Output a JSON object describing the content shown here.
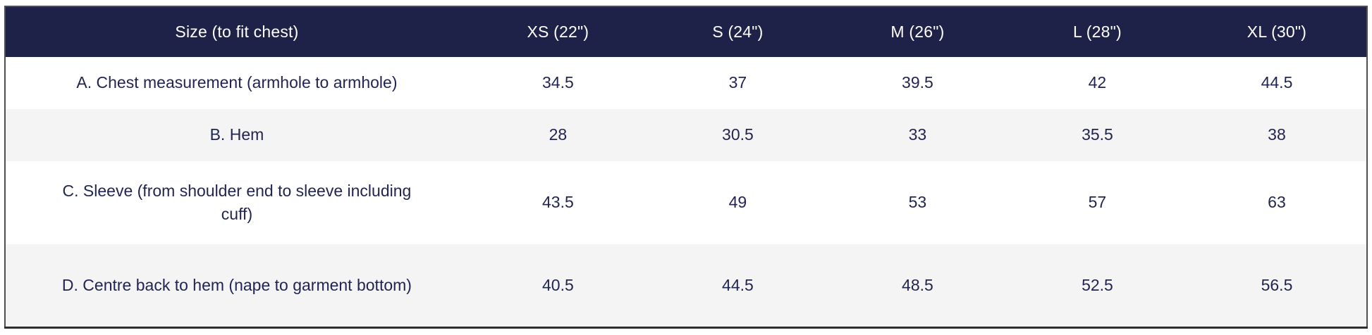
{
  "table": {
    "columns": [
      "Size (to fit chest)",
      "XS (22\")",
      "S (24\")",
      "M (26\")",
      "L (28\")",
      "XL (30\")"
    ],
    "rows": [
      {
        "label": "A. Chest measurement (armhole to armhole)",
        "values": [
          "34.5",
          "37",
          "39.5",
          "42",
          "44.5"
        ]
      },
      {
        "label": "B. Hem",
        "values": [
          "28",
          "30.5",
          "33",
          "35.5",
          "38"
        ]
      },
      {
        "label": "C. Sleeve (from shoulder end to sleeve including cuff)",
        "values": [
          "43.5",
          "49",
          "53",
          "57",
          "63"
        ]
      },
      {
        "label": "D. Centre back to hem (nape to garment bottom)",
        "values": [
          "40.5",
          "44.5",
          "48.5",
          "52.5",
          "56.5"
        ]
      }
    ]
  },
  "colors": {
    "header_bg": "#1e2248",
    "header_text": "#ffffff",
    "body_text": "#1f2451",
    "alt_row_bg": "#f4f4f4",
    "row_bg": "#ffffff",
    "border": "#505050"
  },
  "chart_data": {
    "type": "table",
    "title": "Size (to fit chest)",
    "columns": [
      "Size (to fit chest)",
      "XS (22\")",
      "S (24\")",
      "M (26\")",
      "L (28\")",
      "XL (30\")"
    ],
    "row_labels": [
      "A. Chest measurement (armhole to armhole)",
      "B. Hem",
      "C. Sleeve (from shoulder end to sleeve including cuff)",
      "D. Centre back to hem (nape to garment bottom)"
    ],
    "series": [
      {
        "name": "XS (22\")",
        "values": [
          34.5,
          28,
          43.5,
          40.5
        ]
      },
      {
        "name": "S (24\")",
        "values": [
          37,
          30.5,
          49,
          44.5
        ]
      },
      {
        "name": "M (26\")",
        "values": [
          39.5,
          33,
          53,
          48.5
        ]
      },
      {
        "name": "L (28\")",
        "values": [
          42,
          35.5,
          57,
          52.5
        ]
      },
      {
        "name": "XL (30\")",
        "values": [
          44.5,
          38,
          63,
          56.5
        ]
      }
    ],
    "layout": {
      "header_style": "dark-navy",
      "zebra_striping": true,
      "alignment": "center"
    }
  }
}
